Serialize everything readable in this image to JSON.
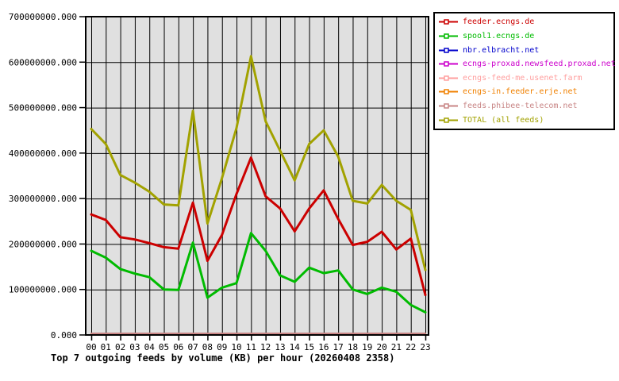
{
  "chart": {
    "title": "Top 7 outgoing feeds by volume (KB) per hour (20260408 2358)"
  },
  "chart_data": {
    "type": "line",
    "title": "Top 7 outgoing feeds by volume (KB) per hour (20260408 2358)",
    "xlabel": "",
    "ylabel": "",
    "ylim": [
      0,
      700000000
    ],
    "y_tick_step": 100000000,
    "y_tick_labels": [
      "0.000",
      "100000000.000",
      "200000000.000",
      "300000000.000",
      "400000000.000",
      "500000000.000",
      "600000000.000",
      "700000000.000"
    ],
    "x_tick_labels": [
      "00",
      "01",
      "02",
      "03",
      "04",
      "05",
      "06",
      "07",
      "08",
      "09",
      "10",
      "11",
      "12",
      "13",
      "14",
      "15",
      "16",
      "17",
      "18",
      "19",
      "20",
      "21",
      "22",
      "23"
    ],
    "grid": true,
    "plot_background": "#e0e0e0",
    "grid_color": "#000000",
    "legend_position": "outside-top-right",
    "series": [
      {
        "name": "feeder.ecngs.de",
        "color": "#cc0000",
        "width": 3,
        "values": [
          265000000,
          253000000,
          215000000,
          210000000,
          202000000,
          193000000,
          190000000,
          291000000,
          163000000,
          220000000,
          310000000,
          390000000,
          305000000,
          278000000,
          228000000,
          278000000,
          318000000,
          255000000,
          198000000,
          205000000,
          227000000,
          188000000,
          212000000,
          88000000
        ]
      },
      {
        "name": "spool1.ecngs.de",
        "color": "#00bb00",
        "width": 3,
        "values": [
          185000000,
          170000000,
          145000000,
          135000000,
          127000000,
          100000000,
          99000000,
          203000000,
          82000000,
          104000000,
          114000000,
          224000000,
          185000000,
          131000000,
          117000000,
          148000000,
          136000000,
          142000000,
          100000000,
          90000000,
          104000000,
          95000000,
          66000000,
          50000000
        ]
      },
      {
        "name": "nbr.elbracht.net",
        "color": "#0000cc",
        "width": 2,
        "values": [
          1500000,
          1500000,
          1500000,
          1500000,
          1500000,
          1500000,
          1500000,
          1500000,
          1500000,
          1500000,
          1500000,
          1500000,
          1500000,
          1500000,
          1500000,
          1500000,
          1500000,
          1500000,
          1500000,
          1500000,
          1500000,
          1500000,
          1500000,
          1500000
        ]
      },
      {
        "name": "ecngs-proxad.newsfeed.proxad.net",
        "color": "#cc00cc",
        "width": 2,
        "values": [
          2000000,
          2000000,
          2000000,
          2000000,
          2000000,
          2000000,
          2000000,
          2000000,
          2000000,
          2000000,
          2000000,
          2000000,
          2000000,
          2000000,
          2000000,
          2000000,
          2000000,
          2000000,
          2000000,
          2000000,
          2000000,
          2000000,
          2000000,
          2000000
        ]
      },
      {
        "name": "ecngs-feed-me.usenet.farm",
        "color": "#ff9f9f",
        "width": 2,
        "values": [
          2500000,
          2500000,
          2500000,
          2500000,
          2500000,
          2500000,
          2500000,
          2500000,
          2500000,
          2500000,
          2500000,
          2500000,
          2500000,
          2500000,
          2500000,
          2500000,
          2500000,
          2500000,
          2500000,
          2500000,
          2500000,
          2500000,
          2500000,
          2500000
        ]
      },
      {
        "name": "ecngs-in.feeder.erje.net",
        "color": "#f08000",
        "width": 2,
        "values": [
          3000000,
          3000000,
          3000000,
          3000000,
          3000000,
          3000000,
          3000000,
          3000000,
          3000000,
          3000000,
          3000000,
          3000000,
          3000000,
          3000000,
          3000000,
          3000000,
          3000000,
          3000000,
          3000000,
          3000000,
          3000000,
          3000000,
          3000000,
          3000000
        ]
      },
      {
        "name": "feeds.phibee-telecom.net",
        "color": "#c88585",
        "width": 2,
        "values": [
          3500000,
          3500000,
          3500000,
          3500000,
          3500000,
          3500000,
          3500000,
          3500000,
          3500000,
          3500000,
          3500000,
          3500000,
          3500000,
          3500000,
          3500000,
          3500000,
          3500000,
          3500000,
          3500000,
          3500000,
          3500000,
          3500000,
          3500000,
          3500000
        ]
      },
      {
        "name": "TOTAL (all feeds)",
        "color": "#a2a200",
        "width": 3,
        "values": [
          453000000,
          420000000,
          352000000,
          335000000,
          315000000,
          287000000,
          285000000,
          493000000,
          245000000,
          345000000,
          455000000,
          613000000,
          470000000,
          405000000,
          340000000,
          420000000,
          450000000,
          392000000,
          295000000,
          289000000,
          330000000,
          295000000,
          275000000,
          143000000
        ]
      }
    ]
  }
}
